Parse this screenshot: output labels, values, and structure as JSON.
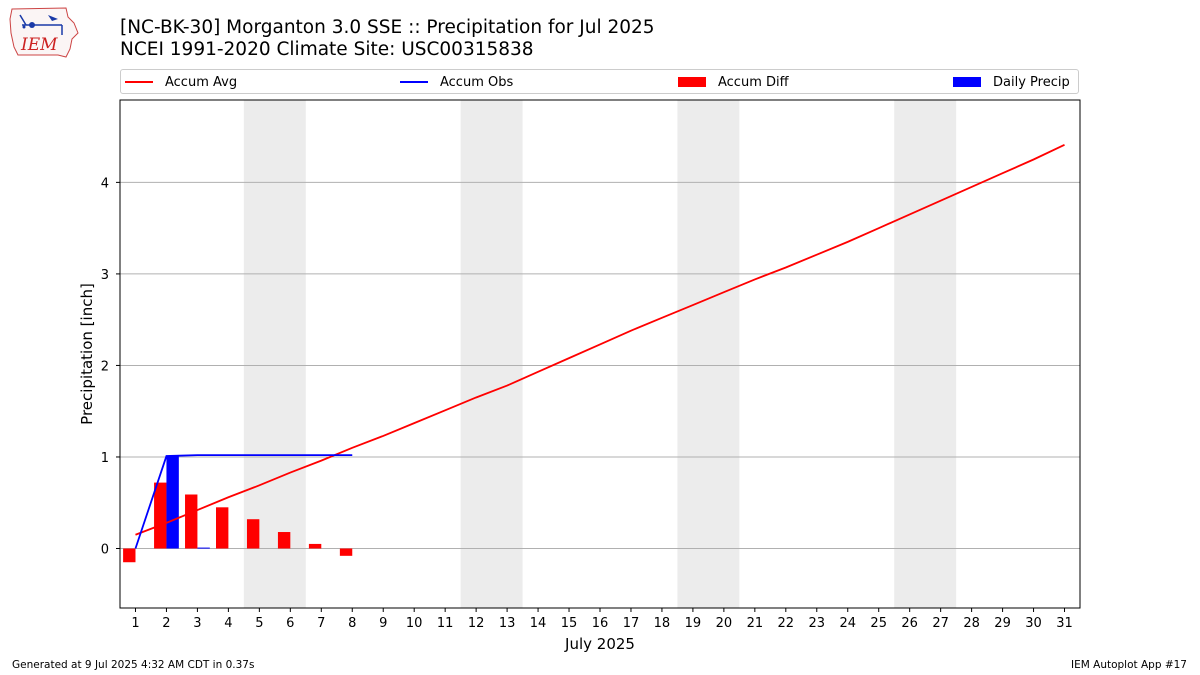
{
  "header": {
    "title_line1": "[NC-BK-30] Morganton 3.0 SSE :: Precipitation for Jul 2025",
    "title_line2": "NCEI 1991-2020 Climate Site: USC00315838",
    "logo_text": "IEM"
  },
  "footer": {
    "left": "Generated at 9 Jul 2025 4:32 AM CDT in 0.37s",
    "right": "IEM Autoplot App #17"
  },
  "colors": {
    "accum_avg": "#ff0000",
    "accum_obs": "#0000ff",
    "accum_diff": "#ff0000",
    "daily_precip": "#0000ff",
    "weekend_band": "#ececec",
    "grid": "#b0b0b0"
  },
  "chart_data": {
    "type": "bar",
    "title": "[NC-BK-30] Morganton 3.0 SSE :: Precipitation for Jul 2025",
    "xlabel": "July 2025",
    "ylabel": "Precipitation [inch]",
    "xlim": [
      0.5,
      31.5
    ],
    "ylim": [
      -0.65,
      4.9
    ],
    "x_ticks": [
      1,
      2,
      3,
      4,
      5,
      6,
      7,
      8,
      9,
      10,
      11,
      12,
      13,
      14,
      15,
      16,
      17,
      18,
      19,
      20,
      21,
      22,
      23,
      24,
      25,
      26,
      27,
      28,
      29,
      30,
      31
    ],
    "y_ticks": [
      0,
      1,
      2,
      3,
      4
    ],
    "grid": "horizontal",
    "legend_position": "top",
    "weekend_bands": [
      [
        4.5,
        6.5
      ],
      [
        11.5,
        13.5
      ],
      [
        18.5,
        20.5
      ],
      [
        25.5,
        27.5
      ]
    ],
    "series": [
      {
        "name": "Accum Avg",
        "kind": "line",
        "x": [
          1,
          2,
          3,
          4,
          5,
          6,
          7,
          8,
          9,
          10,
          11,
          12,
          13,
          14,
          15,
          16,
          17,
          18,
          19,
          20,
          21,
          22,
          23,
          24,
          25,
          26,
          27,
          28,
          29,
          30,
          31
        ],
        "values": [
          0.15,
          0.28,
          0.42,
          0.56,
          0.69,
          0.83,
          0.96,
          1.1,
          1.23,
          1.37,
          1.51,
          1.65,
          1.78,
          1.93,
          2.08,
          2.23,
          2.38,
          2.52,
          2.66,
          2.8,
          2.94,
          3.07,
          3.21,
          3.35,
          3.5,
          3.65,
          3.8,
          3.95,
          4.1,
          4.25,
          4.41
        ]
      },
      {
        "name": "Accum Obs",
        "kind": "line",
        "x": [
          1,
          2,
          3,
          4,
          5,
          6,
          7,
          8
        ],
        "values": [
          0.0,
          1.01,
          1.02,
          1.02,
          1.02,
          1.02,
          1.02,
          1.02
        ]
      },
      {
        "name": "Accum Diff",
        "kind": "bar",
        "x": [
          1,
          2,
          3,
          4,
          5,
          6,
          7,
          8
        ],
        "values": [
          -0.15,
          0.72,
          0.59,
          0.45,
          0.32,
          0.18,
          0.05,
          -0.08
        ]
      },
      {
        "name": "Daily Precip",
        "kind": "bar",
        "x": [
          1,
          2,
          3,
          4,
          5,
          6,
          7,
          8
        ],
        "values": [
          0.0,
          1.01,
          0.01,
          0.0,
          0.0,
          0.0,
          0.0,
          0.0
        ]
      }
    ]
  }
}
